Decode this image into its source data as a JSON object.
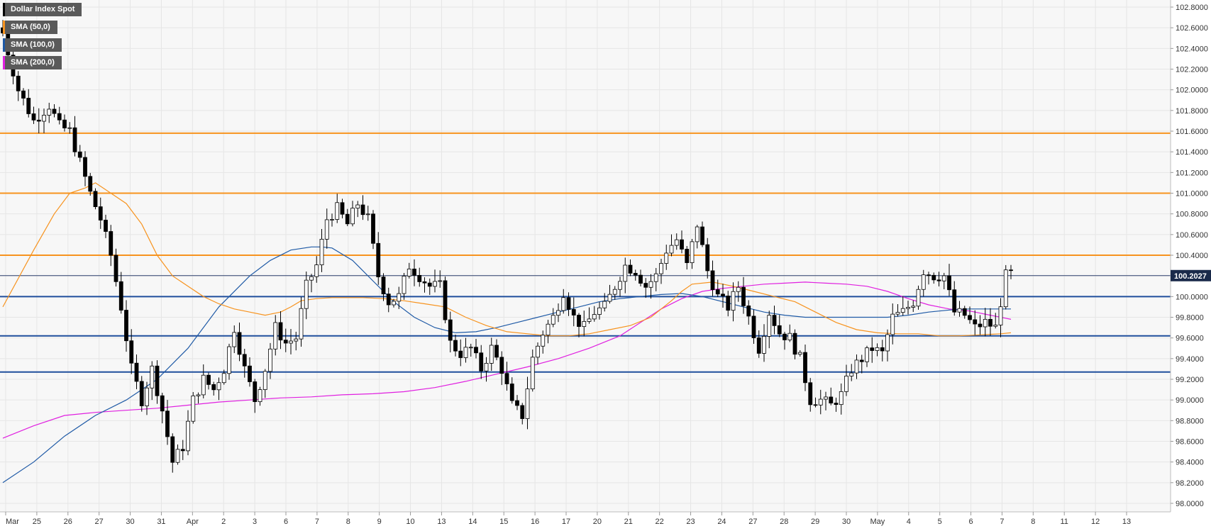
{
  "chart_data": {
    "type": "candlestick",
    "title": "Dollar Index Spot",
    "ylim": [
      98.0,
      102.8
    ],
    "grid": true,
    "legend_placement": "top-left",
    "last_price": 100.2027,
    "y_ticks": [
      "102.8000",
      "102.6000",
      "102.4000",
      "102.2000",
      "102.0000",
      "101.8000",
      "101.6000",
      "101.4000",
      "101.2000",
      "101.0000",
      "100.8000",
      "100.6000",
      "100.4000",
      "100.2000",
      "100.0000",
      "99.8000",
      "99.6000",
      "99.4000",
      "99.2000",
      "99.0000",
      "98.8000",
      "98.6000",
      "98.4000",
      "98.2000",
      "98.0000"
    ],
    "x_ticks": [
      "Mar",
      "25",
      "26",
      "27",
      "30",
      "31",
      "Apr",
      "2",
      "3",
      "6",
      "7",
      "8",
      "9",
      "10",
      "13",
      "14",
      "15",
      "16",
      "17",
      "20",
      "21",
      "22",
      "23",
      "24",
      "27",
      "28",
      "29",
      "30",
      "May",
      "4",
      "5",
      "6",
      "7",
      "8",
      "11",
      "12",
      "13"
    ],
    "legend": [
      {
        "label": "Dollar Index Spot",
        "color": "#000000"
      },
      {
        "label": "SMA (50,0)",
        "color": "#f7931e"
      },
      {
        "label": "SMA (100,0)",
        "color": "#1f5aa6"
      },
      {
        "label": "SMA (200,0)",
        "color": "#e020e0"
      }
    ],
    "resistance_levels": [
      101.58,
      101.0,
      100.4
    ],
    "support_levels": [
      100.0,
      99.62,
      99.27
    ],
    "colors": {
      "resistance": "#f7931e",
      "support": "#1f4e9c",
      "sma50": "#f7931e",
      "sma100": "#1f5aa6",
      "sma200": "#e020e0",
      "up": "#ffffff",
      "down": "#000000",
      "price_label": "#1a2a4a"
    },
    "price_anchors": [
      [
        0,
        102.55
      ],
      [
        3,
        102.0
      ],
      [
        6,
        101.7
      ],
      [
        9,
        101.85
      ],
      [
        11,
        101.65
      ],
      [
        13,
        101.6
      ],
      [
        15,
        101.3
      ],
      [
        17,
        101.0
      ],
      [
        19,
        100.75
      ],
      [
        21,
        100.4
      ],
      [
        23,
        99.9
      ],
      [
        25,
        99.3
      ],
      [
        27,
        99.0
      ],
      [
        29,
        99.3
      ],
      [
        31,
        98.9
      ],
      [
        33,
        98.4
      ],
      [
        35,
        98.55
      ],
      [
        37,
        99.0
      ],
      [
        39,
        99.2
      ],
      [
        41,
        99.1
      ],
      [
        43,
        99.3
      ],
      [
        45,
        99.7
      ],
      [
        47,
        99.3
      ],
      [
        49,
        99.0
      ],
      [
        51,
        99.3
      ],
      [
        53,
        99.7
      ],
      [
        55,
        99.55
      ],
      [
        57,
        99.6
      ],
      [
        59,
        100.1
      ],
      [
        61,
        100.3
      ],
      [
        63,
        100.75
      ],
      [
        65,
        100.85
      ],
      [
        67,
        100.7
      ],
      [
        69,
        100.9
      ],
      [
        71,
        100.75
      ],
      [
        73,
        100.2
      ],
      [
        75,
        99.95
      ],
      [
        77,
        100.0
      ],
      [
        79,
        100.3
      ],
      [
        81,
        100.2
      ],
      [
        83,
        100.1
      ],
      [
        85,
        100.1
      ],
      [
        87,
        99.55
      ],
      [
        89,
        99.45
      ],
      [
        91,
        99.5
      ],
      [
        93,
        99.3
      ],
      [
        95,
        99.5
      ],
      [
        97,
        99.3
      ],
      [
        99,
        98.95
      ],
      [
        101,
        98.85
      ],
      [
        103,
        99.4
      ],
      [
        105,
        99.65
      ],
      [
        107,
        99.8
      ],
      [
        109,
        100.05
      ],
      [
        111,
        99.8
      ],
      [
        113,
        99.7
      ],
      [
        115,
        99.85
      ],
      [
        117,
        99.9
      ],
      [
        119,
        100.1
      ],
      [
        121,
        100.3
      ],
      [
        123,
        100.25
      ],
      [
        125,
        100.1
      ],
      [
        127,
        100.2
      ],
      [
        129,
        100.45
      ],
      [
        131,
        100.55
      ],
      [
        133,
        100.3
      ],
      [
        135,
        100.7
      ],
      [
        137,
        100.25
      ],
      [
        139,
        100.0
      ],
      [
        141,
        99.9
      ],
      [
        143,
        100.1
      ],
      [
        145,
        99.8
      ],
      [
        147,
        99.5
      ],
      [
        149,
        99.85
      ],
      [
        151,
        99.65
      ],
      [
        153,
        99.6
      ],
      [
        155,
        99.4
      ],
      [
        157,
        99.0
      ],
      [
        159,
        99.0
      ],
      [
        161,
        98.95
      ],
      [
        163,
        99.05
      ],
      [
        165,
        99.3
      ],
      [
        167,
        99.4
      ],
      [
        169,
        99.5
      ],
      [
        171,
        99.45
      ],
      [
        173,
        99.8
      ],
      [
        175,
        99.85
      ],
      [
        177,
        99.95
      ],
      [
        179,
        100.25
      ],
      [
        181,
        100.2
      ],
      [
        183,
        100.2
      ],
      [
        185,
        99.85
      ],
      [
        187,
        99.82
      ],
      [
        189,
        99.7
      ],
      [
        191,
        99.75
      ],
      [
        193,
        99.7
      ],
      [
        195,
        100.2
      ],
      [
        196,
        100.22
      ]
    ],
    "sma50_points": [
      [
        0,
        99.9
      ],
      [
        6,
        100.45
      ],
      [
        10,
        100.8
      ],
      [
        13,
        101.0
      ],
      [
        16,
        101.05
      ],
      [
        18,
        101.1
      ],
      [
        21,
        101.0
      ],
      [
        24,
        100.9
      ],
      [
        27,
        100.7
      ],
      [
        30,
        100.4
      ],
      [
        33,
        100.2
      ],
      [
        36,
        100.1
      ],
      [
        39,
        100.0
      ],
      [
        42,
        99.93
      ],
      [
        45,
        99.88
      ],
      [
        48,
        99.85
      ],
      [
        51,
        99.82
      ],
      [
        54,
        99.85
      ],
      [
        56,
        99.9
      ],
      [
        58,
        99.96
      ],
      [
        61,
        99.98
      ],
      [
        64,
        99.99
      ],
      [
        66,
        99.99
      ],
      [
        70,
        99.99
      ],
      [
        74,
        99.98
      ],
      [
        78,
        99.96
      ],
      [
        82,
        99.93
      ],
      [
        86,
        99.9
      ],
      [
        90,
        99.8
      ],
      [
        94,
        99.72
      ],
      [
        98,
        99.66
      ],
      [
        102,
        99.64
      ],
      [
        106,
        99.62
      ],
      [
        110,
        99.62
      ],
      [
        114,
        99.64
      ],
      [
        118,
        99.68
      ],
      [
        122,
        99.72
      ],
      [
        126,
        99.8
      ],
      [
        128,
        99.88
      ],
      [
        130,
        99.96
      ],
      [
        132,
        100.05
      ],
      [
        134,
        100.12
      ],
      [
        138,
        100.14
      ],
      [
        142,
        100.1
      ],
      [
        146,
        100.05
      ],
      [
        150,
        100.0
      ],
      [
        154,
        99.95
      ],
      [
        158,
        99.85
      ],
      [
        162,
        99.75
      ],
      [
        166,
        99.68
      ],
      [
        170,
        99.65
      ],
      [
        174,
        99.64
      ],
      [
        178,
        99.64
      ],
      [
        182,
        99.62
      ],
      [
        186,
        99.62
      ],
      [
        190,
        99.63
      ],
      [
        194,
        99.64
      ],
      [
        196,
        99.65
      ]
    ],
    "sma100_points": [
      [
        0,
        98.2
      ],
      [
        6,
        98.4
      ],
      [
        12,
        98.65
      ],
      [
        18,
        98.85
      ],
      [
        24,
        99.0
      ],
      [
        30,
        99.2
      ],
      [
        36,
        99.5
      ],
      [
        42,
        99.9
      ],
      [
        48,
        100.2
      ],
      [
        52,
        100.35
      ],
      [
        56,
        100.45
      ],
      [
        60,
        100.48
      ],
      [
        62,
        100.48
      ],
      [
        64,
        100.47
      ],
      [
        68,
        100.35
      ],
      [
        72,
        100.15
      ],
      [
        76,
        99.95
      ],
      [
        80,
        99.8
      ],
      [
        84,
        99.7
      ],
      [
        88,
        99.65
      ],
      [
        92,
        99.66
      ],
      [
        96,
        99.7
      ],
      [
        100,
        99.75
      ],
      [
        104,
        99.8
      ],
      [
        108,
        99.85
      ],
      [
        112,
        99.9
      ],
      [
        116,
        99.95
      ],
      [
        120,
        99.98
      ],
      [
        124,
        100.0
      ],
      [
        128,
        100.02
      ],
      [
        132,
        100.03
      ],
      [
        136,
        100.0
      ],
      [
        140,
        99.95
      ],
      [
        144,
        99.9
      ],
      [
        148,
        99.85
      ],
      [
        152,
        99.82
      ],
      [
        156,
        99.8
      ],
      [
        160,
        99.8
      ],
      [
        164,
        99.8
      ],
      [
        168,
        99.8
      ],
      [
        172,
        99.8
      ],
      [
        176,
        99.82
      ],
      [
        180,
        99.85
      ],
      [
        184,
        99.87
      ],
      [
        188,
        99.88
      ],
      [
        192,
        99.88
      ],
      [
        196,
        99.88
      ]
    ],
    "sma200_points": [
      [
        0,
        98.63
      ],
      [
        6,
        98.75
      ],
      [
        12,
        98.85
      ],
      [
        18,
        98.88
      ],
      [
        24,
        98.9
      ],
      [
        30,
        98.92
      ],
      [
        36,
        98.95
      ],
      [
        42,
        98.98
      ],
      [
        48,
        99.0
      ],
      [
        54,
        99.02
      ],
      [
        60,
        99.03
      ],
      [
        66,
        99.05
      ],
      [
        72,
        99.06
      ],
      [
        78,
        99.08
      ],
      [
        84,
        99.12
      ],
      [
        90,
        99.18
      ],
      [
        96,
        99.25
      ],
      [
        102,
        99.32
      ],
      [
        108,
        99.4
      ],
      [
        114,
        99.5
      ],
      [
        120,
        99.62
      ],
      [
        124,
        99.75
      ],
      [
        128,
        99.88
      ],
      [
        132,
        99.98
      ],
      [
        136,
        100.05
      ],
      [
        140,
        100.08
      ],
      [
        144,
        100.1
      ],
      [
        148,
        100.12
      ],
      [
        152,
        100.13
      ],
      [
        156,
        100.14
      ],
      [
        160,
        100.13
      ],
      [
        164,
        100.12
      ],
      [
        168,
        100.1
      ],
      [
        172,
        100.05
      ],
      [
        176,
        99.98
      ],
      [
        180,
        99.92
      ],
      [
        184,
        99.88
      ],
      [
        188,
        99.86
      ],
      [
        192,
        99.82
      ],
      [
        196,
        99.78
      ]
    ]
  }
}
